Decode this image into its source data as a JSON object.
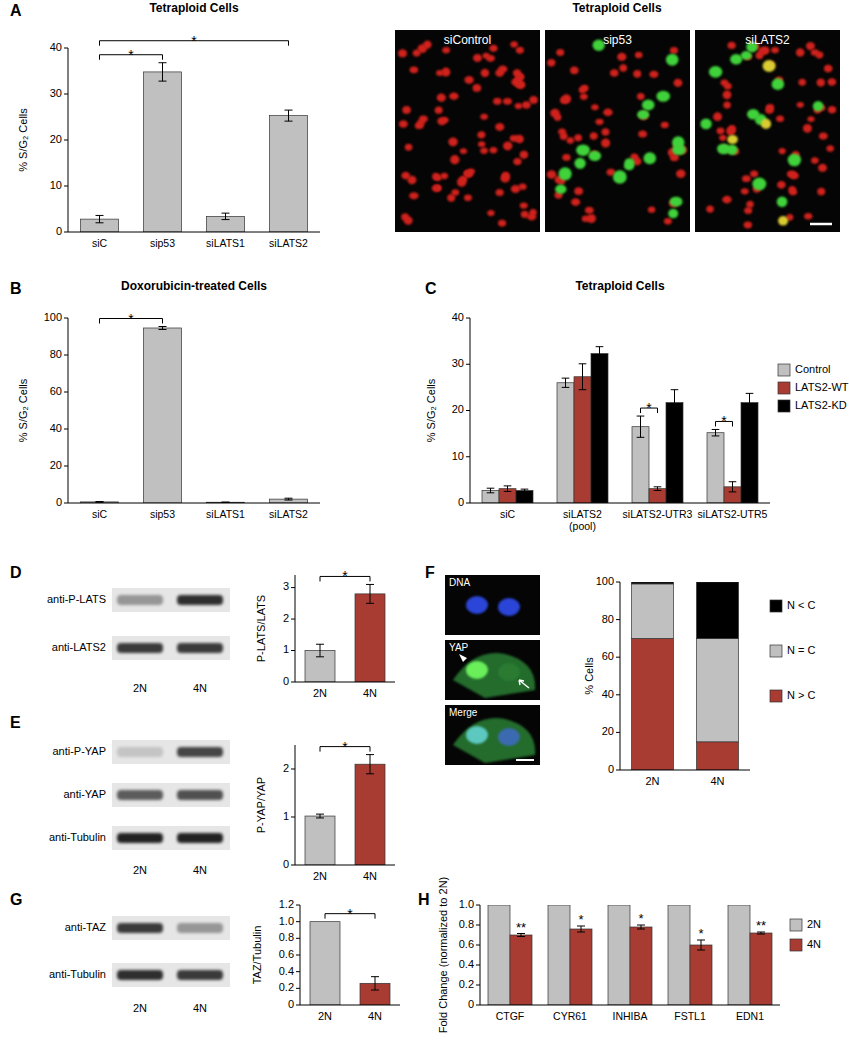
{
  "chart_data": [
    {
      "type": "bar",
      "panel_label": "A",
      "title": "Tetraploid Cells",
      "y_label": "% S/G₂ Cells",
      "categories": [
        "siC",
        "sip53",
        "siLATS1",
        "siLATS2"
      ],
      "values": [
        2.8,
        34.8,
        3.4,
        25.3
      ],
      "errors": [
        0.8,
        2.0,
        0.7,
        1.2
      ],
      "color": "#c0c0c0",
      "ylim": [
        0,
        40
      ],
      "yticks": [
        0,
        10,
        20,
        30,
        40
      ],
      "grid": false,
      "annotations": [
        {
          "text": "*",
          "between": [
            "siC",
            "sip53"
          ]
        },
        {
          "text": "*",
          "between": [
            "siC",
            "siLATS2"
          ]
        }
      ]
    },
    {
      "type": "bar",
      "panel_label": "B",
      "title": "Doxorubicin-treated Cells",
      "y_label": "% S/G₂ Cells",
      "categories": [
        "siC",
        "sip53",
        "siLATS1",
        "siLATS2"
      ],
      "values": [
        0.6,
        94.6,
        0.4,
        2.1
      ],
      "errors": [
        0.2,
        0.8,
        0.1,
        0.5
      ],
      "color": "#c0c0c0",
      "ylim": [
        0,
        100
      ],
      "yticks": [
        0,
        20,
        40,
        60,
        80,
        100
      ],
      "grid": false,
      "annotations": [
        {
          "text": "*",
          "between": [
            "siC",
            "sip53"
          ]
        }
      ]
    },
    {
      "type": "bar",
      "panel_label": "C",
      "title": "Tetraploid Cells",
      "y_label": "% S/G₂ Cells",
      "categories": [
        "siC",
        "siLATS2 (pool)",
        "siLATS2-UTR3",
        "siLATS2-UTR5"
      ],
      "series": [
        {
          "name": "Control",
          "color": "#c0c0c0",
          "values": [
            2.7,
            26.0,
            16.5,
            15.2
          ],
          "errors": [
            0.5,
            1.0,
            2.3,
            0.7
          ]
        },
        {
          "name": "LATS2-WT",
          "color": "#a83c32",
          "values": [
            3.1,
            27.3,
            3.1,
            3.5
          ],
          "errors": [
            0.6,
            2.8,
            0.4,
            1.1
          ]
        },
        {
          "name": "LATS2-KD",
          "color": "#000000",
          "values": [
            2.7,
            32.3,
            21.7,
            21.7
          ],
          "errors": [
            0.3,
            1.5,
            2.8,
            2.0
          ]
        }
      ],
      "ylim": [
        0,
        40
      ],
      "yticks": [
        0,
        10,
        20,
        30,
        40
      ],
      "grid": false,
      "legend": "right",
      "annotations": [
        {
          "text": "*",
          "category": "siLATS2-UTR3",
          "between": [
            "Control",
            "LATS2-WT"
          ]
        },
        {
          "text": "*",
          "category": "siLATS2-UTR5",
          "between": [
            "Control",
            "LATS2-WT"
          ]
        }
      ]
    },
    {
      "type": "bar",
      "panel_label": "D",
      "y_label": "P-LATS/LATS",
      "categories": [
        "2N",
        "4N"
      ],
      "values": [
        1.0,
        2.8
      ],
      "errors": [
        0.2,
        0.3
      ],
      "colors": [
        "#c0c0c0",
        "#a83c32"
      ],
      "ylim": [
        0,
        3.4
      ],
      "yticks": [
        0,
        1,
        2,
        3
      ],
      "grid": false,
      "annotations": [
        {
          "text": "*",
          "between": [
            "2N",
            "4N"
          ]
        }
      ]
    },
    {
      "type": "bar",
      "panel_label": "E",
      "y_label": "P-YAP/YAP",
      "categories": [
        "2N",
        "4N"
      ],
      "values": [
        1.02,
        2.1
      ],
      "errors": [
        0.04,
        0.2
      ],
      "colors": [
        "#c0c0c0",
        "#a83c32"
      ],
      "ylim": [
        0,
        2.5
      ],
      "yticks": [
        0,
        1,
        2
      ],
      "grid": false,
      "annotations": [
        {
          "text": "*",
          "between": [
            "2N",
            "4N"
          ]
        }
      ]
    },
    {
      "type": "bar",
      "panel_label": "F",
      "y_label": "% Cells",
      "categories": [
        "2N",
        "4N"
      ],
      "series": [
        {
          "name": "N > C",
          "color": "#a83c32",
          "values": [
            70,
            15
          ]
        },
        {
          "name": "N = C",
          "color": "#c0c0c0",
          "values": [
            29,
            55
          ]
        },
        {
          "name": "N < C",
          "color": "#000000",
          "values": [
            1,
            30
          ]
        }
      ],
      "stacked": true,
      "ylim": [
        0,
        100
      ],
      "yticks": [
        0,
        20,
        40,
        60,
        80,
        100
      ],
      "grid": false,
      "legend": "right"
    },
    {
      "type": "bar",
      "panel_label": "G",
      "y_label": "TAZ/Tubulin",
      "categories": [
        "2N",
        "4N"
      ],
      "values": [
        1.0,
        0.26
      ],
      "errors": [
        null,
        0.08
      ],
      "colors": [
        "#c0c0c0",
        "#a83c32"
      ],
      "ylim": [
        0,
        1.2
      ],
      "yticks": [
        0,
        0.2,
        0.4,
        0.6,
        0.8,
        {
          "value": 1,
          "label": "1.0"
        },
        1.2
      ],
      "grid": false,
      "annotations": [
        {
          "text": "*",
          "between": [
            "2N",
            "4N"
          ]
        }
      ]
    },
    {
      "type": "bar",
      "panel_label": "H",
      "y_label": "Fold Change (normalized to 2N)",
      "categories": [
        "CTGF",
        "CYR61",
        "INHIBA",
        "FSTL1",
        "EDN1"
      ],
      "series": [
        {
          "name": "2N",
          "color": "#c0c0c0",
          "values": [
            1,
            1,
            1,
            1,
            1
          ]
        },
        {
          "name": "4N",
          "color": "#a83c32",
          "values": [
            0.7,
            0.76,
            0.78,
            0.6,
            0.72
          ],
          "errors": [
            0.015,
            0.03,
            0.02,
            0.05,
            0.01
          ]
        }
      ],
      "ylim": [
        0,
        1
      ],
      "yticks": [
        0,
        0.2,
        0.4,
        0.6,
        0.8,
        {
          "value": 1,
          "label": "1.0"
        }
      ],
      "grid": false,
      "legend": "right",
      "annotations": [
        {
          "text": "**",
          "category": "CTGF",
          "series": "4N"
        },
        {
          "text": "*",
          "category": "CYR61",
          "series": "4N"
        },
        {
          "text": "*",
          "category": "INHIBA",
          "series": "4N"
        },
        {
          "text": "*",
          "category": "FSTL1",
          "series": "4N"
        },
        {
          "text": "**",
          "category": "EDN1",
          "series": "4N"
        }
      ]
    }
  ],
  "blots": [
    {
      "lanes": [
        "2N",
        "4N"
      ],
      "rows": [
        {
          "label": "anti-P-LATS",
          "intensity": [
            0.35,
            0.8
          ]
        },
        {
          "label": "anti-LATS2",
          "intensity": [
            0.75,
            0.75
          ]
        }
      ]
    },
    {
      "lanes": [
        "2N",
        "4N"
      ],
      "rows": [
        {
          "label": "anti-P-YAP",
          "intensity": [
            0.15,
            0.7
          ]
        },
        {
          "label": "anti-YAP",
          "intensity": [
            0.6,
            0.65
          ]
        },
        {
          "label": "anti-Tubulin",
          "intensity": [
            0.85,
            0.85
          ]
        }
      ]
    },
    {
      "lanes": [
        "2N",
        "4N"
      ],
      "rows": [
        {
          "label": "anti-TAZ",
          "intensity": [
            0.75,
            0.35
          ]
        },
        {
          "label": "anti-Tubulin",
          "intensity": [
            0.8,
            0.75
          ]
        }
      ]
    }
  ],
  "images": [
    {
      "title": "Tetraploid Cells",
      "labels": [
        "siControl",
        "sip53",
        "siLATS2"
      ]
    },
    {
      "labels": [
        "DNA",
        "YAP",
        "Merge"
      ]
    }
  ]
}
